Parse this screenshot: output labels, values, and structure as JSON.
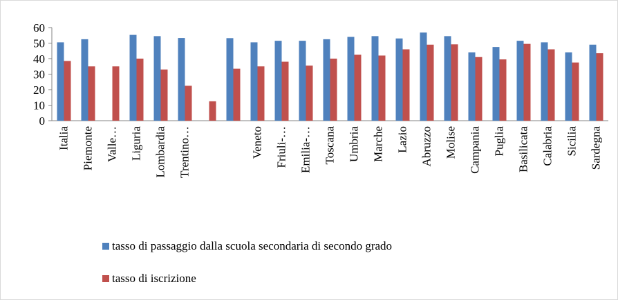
{
  "chart_data": {
    "type": "bar",
    "categories": [
      "Italia",
      "Piemonte",
      "Valle…",
      "Liguria",
      "Lombardia",
      "Trentino…",
      null,
      null,
      "Veneto",
      "Friuli-…",
      "Emilia-…",
      "Toscana",
      "Umbria",
      "Marche",
      "Lazio",
      "Abruzzo",
      "Molise",
      "Campania",
      "Puglia",
      "Basilicata",
      "Calabria",
      "Sicilia",
      "Sardegna"
    ],
    "series": [
      {
        "name": "tasso di passaggio dalla scuola secondaria di secondo grado",
        "color": "#4f81bd",
        "values": [
          50.5,
          52.5,
          null,
          55.3,
          54.5,
          53.3,
          null,
          53.2,
          50.5,
          51.5,
          51.5,
          52.5,
          54,
          54.5,
          53,
          56.8,
          54.5,
          44,
          47.5,
          51.5,
          50.5,
          44,
          49
        ]
      },
      {
        "name": "tasso di iscrizione",
        "color": "#c0504d",
        "values": [
          38.5,
          35,
          35,
          40,
          33,
          22.5,
          12.5,
          33.5,
          35,
          38,
          35.5,
          40,
          42.5,
          42,
          46,
          49,
          49.2,
          41,
          39.5,
          49.5,
          46,
          37.5,
          43.5
        ]
      }
    ],
    "ylim": [
      0,
      60
    ],
    "yticks": [
      0,
      10,
      20,
      30,
      40,
      50,
      60
    ],
    "grid": false,
    "legend": "bottom"
  }
}
